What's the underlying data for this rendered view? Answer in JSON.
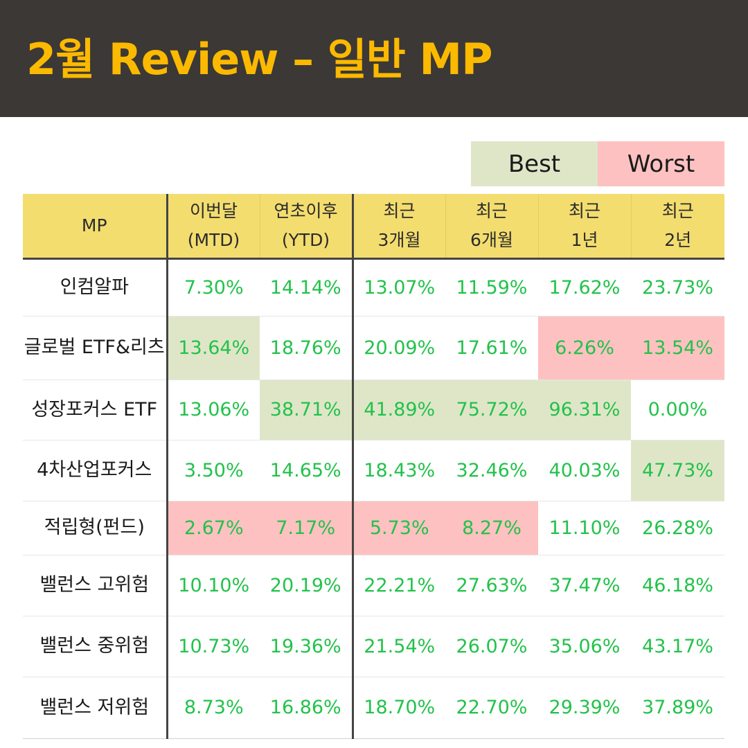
{
  "title": "2월 Review – 일반 MP",
  "legend": {
    "best": "Best",
    "worst": "Worst"
  },
  "colors": {
    "header_bg": "#3b3836",
    "title": "#fbb900",
    "table_header_bg": "#f3dd6f",
    "best_bg": "#dfe6c8",
    "worst_bg": "#fdc1c1",
    "value_text": "#22c24a"
  },
  "table": {
    "headers": [
      [
        "MP"
      ],
      [
        "이번달",
        "(MTD)"
      ],
      [
        "연초이후",
        "(YTD)"
      ],
      [
        "최근",
        "3개월"
      ],
      [
        "최근",
        "6개월"
      ],
      [
        "최근",
        "1년"
      ],
      [
        "최근",
        "2년"
      ]
    ],
    "rows": [
      {
        "name": "인컴알파",
        "values": [
          "7.30%",
          "14.14%",
          "13.07%",
          "11.59%",
          "17.62%",
          "23.73%"
        ],
        "marks": [
          "",
          "",
          "",
          "",
          "",
          ""
        ]
      },
      {
        "name": "글로벌 ETF&리츠",
        "values": [
          "13.64%",
          "18.76%",
          "20.09%",
          "17.61%",
          "6.26%",
          "13.54%"
        ],
        "marks": [
          "best",
          "",
          "",
          "",
          "worst",
          "worst"
        ]
      },
      {
        "name": "성장포커스 ETF",
        "values": [
          "13.06%",
          "38.71%",
          "41.89%",
          "75.72%",
          "96.31%",
          "0.00%"
        ],
        "marks": [
          "",
          "best",
          "best",
          "best",
          "best",
          ""
        ]
      },
      {
        "name": "4차산업포커스",
        "values": [
          "3.50%",
          "14.65%",
          "18.43%",
          "32.46%",
          "40.03%",
          "47.73%"
        ],
        "marks": [
          "",
          "",
          "",
          "",
          "",
          "best"
        ]
      },
      {
        "name": "적립형(펀드)",
        "values": [
          "2.67%",
          "7.17%",
          "5.73%",
          "8.27%",
          "11.10%",
          "26.28%"
        ],
        "marks": [
          "worst",
          "worst",
          "worst",
          "worst",
          "",
          ""
        ]
      },
      {
        "name": "밸런스 고위험",
        "values": [
          "10.10%",
          "20.19%",
          "22.21%",
          "27.63%",
          "37.47%",
          "46.18%"
        ],
        "marks": [
          "",
          "",
          "",
          "",
          "",
          ""
        ]
      },
      {
        "name": "밸런스 중위험",
        "values": [
          "10.73%",
          "19.36%",
          "21.54%",
          "26.07%",
          "35.06%",
          "43.17%"
        ],
        "marks": [
          "",
          "",
          "",
          "",
          "",
          ""
        ]
      },
      {
        "name": "밸런스 저위험",
        "values": [
          "8.73%",
          "16.86%",
          "18.70%",
          "22.70%",
          "29.39%",
          "37.89%"
        ],
        "marks": [
          "",
          "",
          "",
          "",
          "",
          ""
        ]
      }
    ]
  }
}
